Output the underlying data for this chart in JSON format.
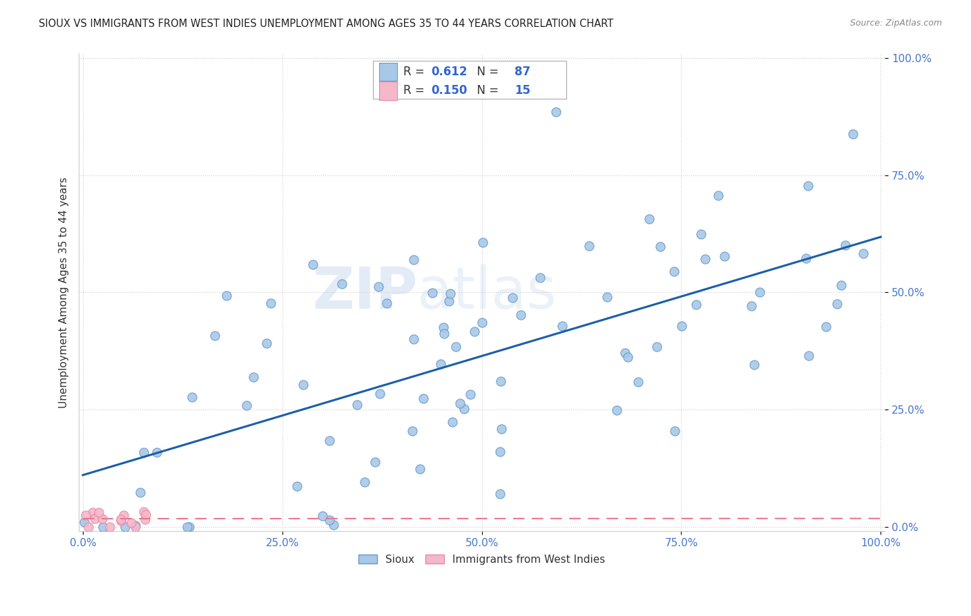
{
  "title": "SIOUX VS IMMIGRANTS FROM WEST INDIES UNEMPLOYMENT AMONG AGES 35 TO 44 YEARS CORRELATION CHART",
  "source": "Source: ZipAtlas.com",
  "ylabel": "Unemployment Among Ages 35 to 44 years",
  "legend_label1": "Sioux",
  "legend_label2": "Immigrants from West Indies",
  "R1": 0.612,
  "N1": 87,
  "R2": 0.15,
  "N2": 15,
  "sioux_color": "#a8c8e8",
  "west_indies_color": "#f4b8c8",
  "sioux_edge": "#6699cc",
  "west_indies_edge": "#e888a8",
  "trend1_color": "#1a5faa",
  "trend2_color": "#e87890",
  "watermark_zip": "ZIP",
  "watermark_atlas": "atlas",
  "background": "#ffffff",
  "tick_color": "#4477cc",
  "grid_color": "#cccccc",
  "xticks": [
    0.0,
    0.25,
    0.5,
    0.75,
    1.0
  ],
  "yticks": [
    0.0,
    0.25,
    0.5,
    0.75,
    1.0
  ],
  "xticklabels": [
    "0.0%",
    "25.0%",
    "50.0%",
    "75.0%",
    "100.0%"
  ],
  "yticklabels": [
    "0.0%",
    "25.0%",
    "50.0%",
    "75.0%",
    "100.0%"
  ]
}
